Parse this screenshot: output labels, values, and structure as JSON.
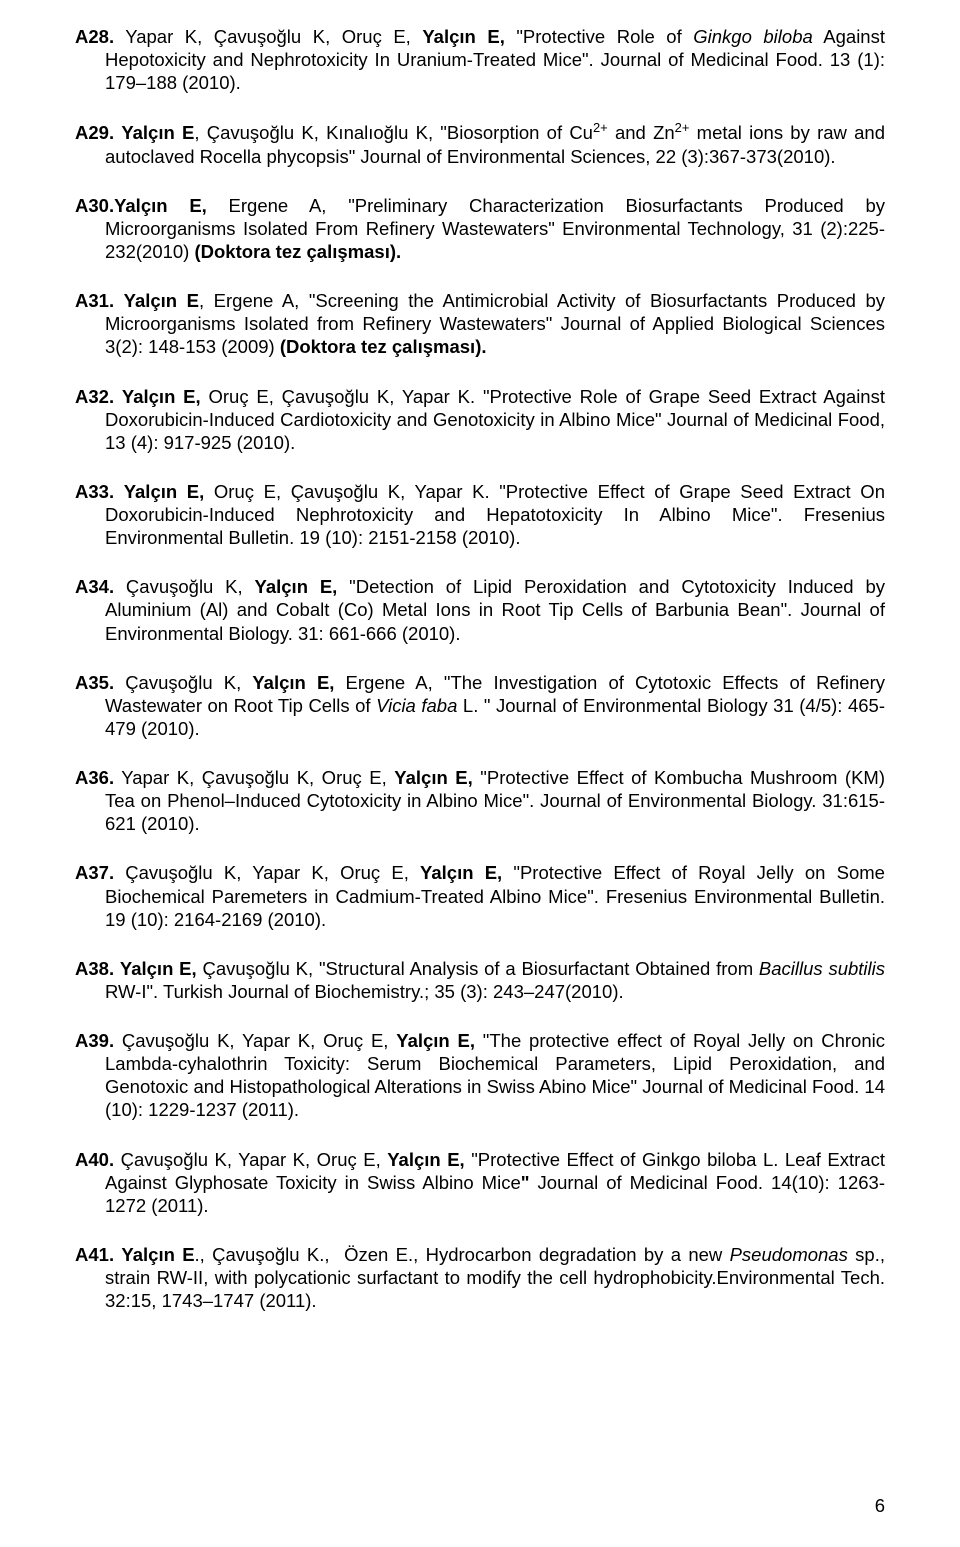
{
  "refs": [
    {
      "label": "A28.",
      "html": " Yapar K, Çavuşoğlu K, Oruç E, <span class='bold'>Yalçın E,</span> \"Protective Role of <span class='italic'>Ginkgo biloba</span> Against Hepotoxicity and Nephrotoxicity In Uranium-Treated Mice\". Journal of Medicinal Food. 13 (1): 179&ndash;188 (2010)."
    },
    {
      "label": "A29.",
      "html": " <span class='bold'>Yalçın E</span>, Çavuşoğlu K, Kınalıoğlu K, \"Biosorption of Cu<sup>2+</sup> and Zn<sup>2+</sup> metal ions by raw and autoclaved Rocella phycopsis\" Journal of Environmental Sciences, 22 (3):367-373(2010)."
    },
    {
      "label": "A30.",
      "html": "<span class='bold'>Yalçın E,</span> Ergene A, \"Preliminary Characterization Biosurfactants Produced by Microorganisms Isolated From Refinery Wastewaters\" Environmental Technology, 31 (2):225-232(2010) <span class='bold'>(Doktora tez çalışması).</span>"
    },
    {
      "label": "A31.",
      "html": " <span class='bold'>Yalçın E</span>, Ergene A, \"Screening the Antimicrobial Activity of Biosurfactants Produced by Microorganisms Isolated from Refinery Wastewaters\" Journal of Applied Biological Sciences 3(2): 148-153 (2009) <span class='bold'>(Doktora tez çalışması).</span>"
    },
    {
      "label": "A32.",
      "html": " <span class='bold'>Yalçın E,</span> Oruç E, Çavuşoğlu K, Yapar K. \"Protective Role of Grape Seed Extract Against Doxorubicin-Induced Cardiotoxicity and Genotoxicity in Albino Mice\" Journal of Medicinal Food, 13 (4): 917-925 (2010)."
    },
    {
      "label": "A33.",
      "html": " <span class='bold'>Yalçın E,</span> Oruç E, Çavuşoğlu K, Yapar K. \"Protective Effect of Grape Seed Extract On Doxorubicin-Induced Nephrotoxicity and Hepatotoxicity In Albino Mice\". Fresenius Environmental Bulletin. 19 (10): 2151-2158 (2010)."
    },
    {
      "label": "A34.",
      "html": " Çavuşoğlu K, <span class='bold'>Yalçın E,</span> \"Detection of Lipid Peroxidation and Cytotoxicity Induced by Aluminium (Al) and Cobalt (Co) Metal Ions in Root Tip Cells of Barbunia Bean\". Journal of Environmental Biology. 31: 661-666 (2010)."
    },
    {
      "label": "A35.",
      "html": " Çavuşoğlu K, <span class='bold'>Yalçın E,</span> Ergene A, \"The Investigation of Cytotoxic Effects of Refinery Wastewater on Root Tip Cells of <span class='italic'>Vicia faba</span> L. \" Journal of Environmental Biology 31 (4/5): 465-479 (2010)."
    },
    {
      "label": "A36.",
      "html": " Yapar K, Çavuşoğlu K, Oruç E, <span class='bold'>Yalçın E,</span> \"Protective Effect of Kombucha Mushroom (KM) Tea on Phenol&ndash;Induced Cytotoxicity in Albino Mice\". Journal of Environmental Biology. 31:615-621 (2010)."
    },
    {
      "label": "A37.",
      "html": " Çavuşoğlu K, Yapar K, Oruç E, <span class='bold'>Yalçın E,</span> \"Protective Effect of Royal Jelly on Some Biochemical Paremeters in Cadmium-Treated Albino Mice\". Fresenius Environmental Bulletin. 19 (10): 2164-2169 (2010)."
    },
    {
      "label": "A38.",
      "html": " <span class='bold'>Yalçın E,</span> Çavuşoğlu K, \"Structural Analysis of a Biosurfactant Obtained from <span class='italic'>Bacillus subtilis</span> RW-I\". Turkish Journal of Biochemistry.; 35 (3): 243&ndash;247(2010)."
    },
    {
      "label": "A39.",
      "html": " Çavuşoğlu K, Yapar K, Oruç E, <span class='bold'>Yalçın E,</span> \"The protective effect of Royal Jelly on Chronic Lambda-cyhalothrin Toxicity: Serum Biochemical Parameters, Lipid Peroxidation, and Genotoxic and Histopathological Alterations in Swiss Abino Mice\" Journal of Medicinal Food. 14 (10): 1229-1237 (2011)."
    },
    {
      "label": "A40.",
      "html": " Çavuşoğlu K, Yapar K, Oruç E, <span class='bold'>Yalçın E,</span> \"Protective Effect of Ginkgo biloba L. Leaf Extract Against Glyphosate Toxicity in Swiss Albino Mice<span class='bold'>\"</span> Journal of Medicinal Food. 14(10): 1263-1272 (2011)."
    },
    {
      "label": "A41.",
      "html": " <span class='bold'>Yalçın E</span>., Çavuşoğlu K., &nbsp;Özen E., Hydrocarbon degradation by a new <span class='italic'>Pseudomonas</span> sp., strain RW-II, with polycationic surfactant to modify the cell hydrophobicity.Environmental Tech. 32:15, 1743&ndash;1747 (2011)."
    }
  ],
  "page_number": "6"
}
